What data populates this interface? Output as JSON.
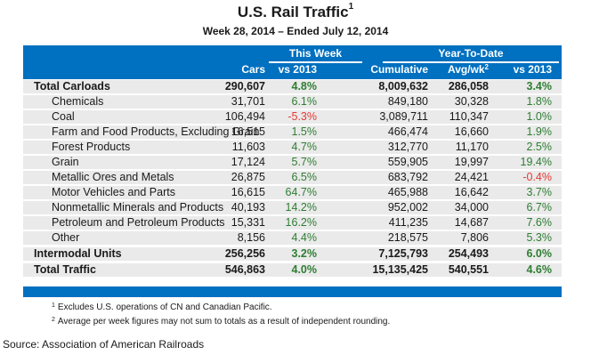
{
  "title": "U.S. Rail Traffic",
  "title_footnote": "1",
  "subtitle": "Week 28, 2014 – Ended July 12, 2014",
  "header": {
    "group_this_week": "This Week",
    "group_ytd": "Year-To-Date",
    "columns": [
      "Cars",
      "vs 2013",
      "Cumulative",
      "Avg/wk",
      "vs 2013"
    ],
    "avg_footnote": "2"
  },
  "colors": {
    "header_bg": "#0070c0",
    "row_bg": "#eaeaea",
    "positive": "#2e7d32",
    "negative": "#e53935"
  },
  "rows": [
    {
      "label": "Total Carloads",
      "cars": "290,607",
      "vs2013_week": "4.8%",
      "cumulative": "8,009,632",
      "avg_wk": "286,058",
      "vs2013_ytd": "3.4%"
    },
    {
      "label": "Chemicals",
      "cars": "31,701",
      "vs2013_week": "6.1%",
      "cumulative": "849,180",
      "avg_wk": "30,328",
      "vs2013_ytd": "1.8%"
    },
    {
      "label": "Coal",
      "cars": "106,494",
      "vs2013_week": "-5.3%",
      "cumulative": "3,089,711",
      "avg_wk": "110,347",
      "vs2013_ytd": "1.0%"
    },
    {
      "label": "Farm and Food Products, Excluding Grain",
      "cars": "16,515",
      "vs2013_week": "1.5%",
      "cumulative": "466,474",
      "avg_wk": "16,660",
      "vs2013_ytd": "1.9%"
    },
    {
      "label": "Forest Products",
      "cars": "11,603",
      "vs2013_week": "4.7%",
      "cumulative": "312,770",
      "avg_wk": "11,170",
      "vs2013_ytd": "2.5%"
    },
    {
      "label": "Grain",
      "cars": "17,124",
      "vs2013_week": "5.7%",
      "cumulative": "559,905",
      "avg_wk": "19,997",
      "vs2013_ytd": "19.4%"
    },
    {
      "label": "Metallic Ores and Metals",
      "cars": "26,875",
      "vs2013_week": "6.5%",
      "cumulative": "683,792",
      "avg_wk": "24,421",
      "vs2013_ytd": "-0.4%"
    },
    {
      "label": "Motor Vehicles and Parts",
      "cars": "16,615",
      "vs2013_week": "64.7%",
      "cumulative": "465,988",
      "avg_wk": "16,642",
      "vs2013_ytd": "3.7%"
    },
    {
      "label": "Nonmetallic Minerals and Products",
      "cars": "40,193",
      "vs2013_week": "14.2%",
      "cumulative": "952,002",
      "avg_wk": "34,000",
      "vs2013_ytd": "6.7%"
    },
    {
      "label": "Petroleum and Petroleum Products",
      "cars": "15,331",
      "vs2013_week": "16.2%",
      "cumulative": "411,235",
      "avg_wk": "14,687",
      "vs2013_ytd": "7.6%"
    },
    {
      "label": "Other",
      "cars": "8,156",
      "vs2013_week": "4.4%",
      "cumulative": "218,575",
      "avg_wk": "7,806",
      "vs2013_ytd": "5.3%"
    },
    {
      "label": "Intermodal Units",
      "cars": "256,256",
      "vs2013_week": "3.2%",
      "cumulative": "7,125,793",
      "avg_wk": "254,493",
      "vs2013_ytd": "6.0%"
    },
    {
      "label": "Total Traffic",
      "cars": "546,863",
      "vs2013_week": "4.0%",
      "cumulative": "15,135,425",
      "avg_wk": "540,551",
      "vs2013_ytd": "4.6%"
    }
  ],
  "footnotes": [
    {
      "mark": "1",
      "text": "Excludes U.S. operations of CN and Canadian Pacific."
    },
    {
      "mark": "2",
      "text": "Average per week figures may not sum to totals as a result of independent rounding."
    }
  ],
  "source": "Source: Association of American Railroads"
}
